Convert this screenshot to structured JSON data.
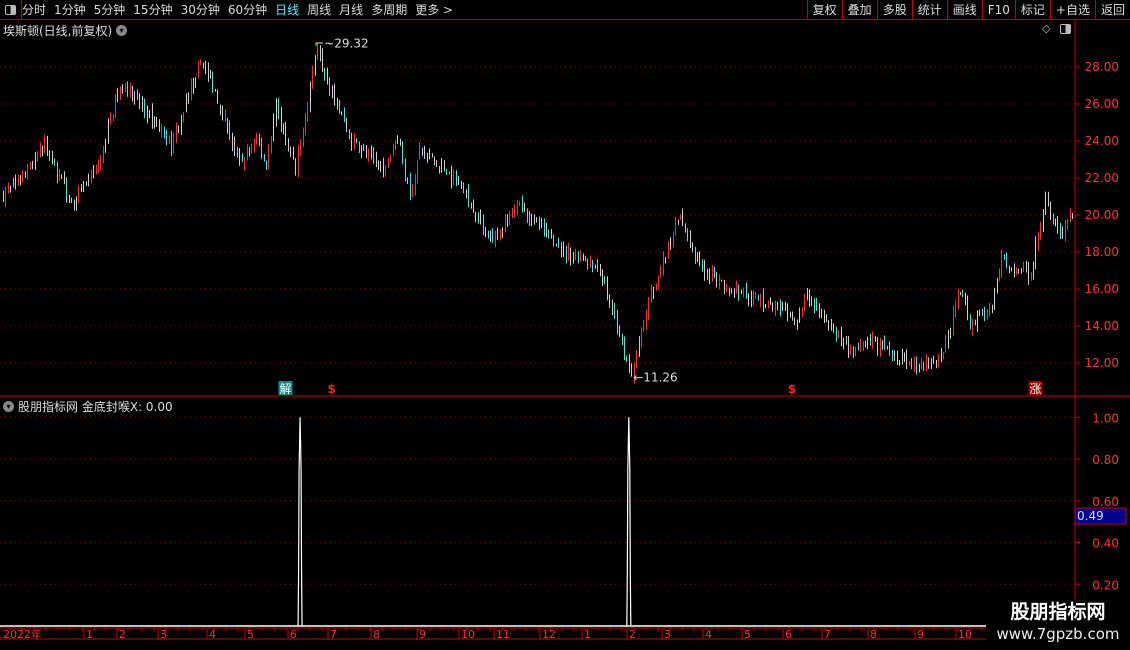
{
  "toolbar": {
    "periods": [
      "分时",
      "1分钟",
      "5分钟",
      "15分钟",
      "30分钟",
      "60分钟",
      "日线",
      "周线",
      "月线",
      "多周期",
      "更多 >"
    ],
    "active": "日线",
    "tools": [
      "复权",
      "叠加",
      "多股",
      "统计",
      "画线",
      "F10",
      "标记",
      "+自选",
      "返回"
    ]
  },
  "stock_title": "埃斯顿(日线,前复权)",
  "indicator_title": "股朋指标网",
  "indicator_value": "金底封喉X: 0.00",
  "current_value_badge": "0.49",
  "watermark": {
    "line1": "股朋指标网",
    "line2": "www.7gpzb.com"
  },
  "colors": {
    "up": "#ff3030",
    "down": "#40e8f0",
    "neutral": "#d0d0d0",
    "axis": "#cc0000",
    "badge": "#000090"
  },
  "markers": [
    {
      "text": "解",
      "bar": 116
    },
    {
      "text": "$",
      "bar": 135
    },
    {
      "text": "$",
      "bar": 324
    },
    {
      "text": "涨",
      "bar": 424
    }
  ],
  "chart_data": [
    {
      "type": "candlestick",
      "price_ticks": [
        "28.00",
        "26.00",
        "24.00",
        "22.00",
        "20.00",
        "18.00",
        "16.00",
        "14.00",
        "12.00"
      ],
      "ylim": [
        11,
        29.5
      ],
      "high_label": "29.32",
      "low_label": "11.26",
      "bars": 440,
      "trend_points": [
        [
          0,
          21.08
        ],
        [
          9,
          22.16
        ],
        [
          17,
          23.78
        ],
        [
          28,
          20.54
        ],
        [
          40,
          22.97
        ],
        [
          46,
          26.22
        ],
        [
          50,
          27.03
        ],
        [
          69,
          23.78
        ],
        [
          81,
          28.38
        ],
        [
          87,
          26.76
        ],
        [
          97,
          22.7
        ],
        [
          104,
          24.05
        ],
        [
          108,
          22.7
        ],
        [
          112,
          25.95
        ],
        [
          120,
          22.43
        ],
        [
          129,
          29.2
        ],
        [
          134,
          27.03
        ],
        [
          143,
          24.05
        ],
        [
          157,
          22.43
        ],
        [
          162,
          24.32
        ],
        [
          167,
          21.08
        ],
        [
          171,
          23.51
        ],
        [
          188,
          21.62
        ],
        [
          200,
          18.65
        ],
        [
          212,
          20.54
        ],
        [
          229,
          18.11
        ],
        [
          245,
          17.03
        ],
        [
          258,
          11.35
        ],
        [
          266,
          15.68
        ],
        [
          278,
          20.0
        ],
        [
          284,
          17.57
        ],
        [
          295,
          16.22
        ],
        [
          311,
          15.41
        ],
        [
          326,
          14.32
        ],
        [
          330,
          15.68
        ],
        [
          348,
          12.43
        ],
        [
          356,
          13.24
        ],
        [
          373,
          11.89
        ],
        [
          385,
          12.16
        ],
        [
          393,
          15.95
        ],
        [
          397,
          14.05
        ],
        [
          406,
          15.14
        ],
        [
          410,
          17.57
        ],
        [
          418,
          17.03
        ],
        [
          422,
          16.76
        ],
        [
          428,
          21.08
        ],
        [
          434,
          18.92
        ],
        [
          439,
          20.0
        ]
      ],
      "date_labels": [
        "2022年",
        "1",
        "2",
        "3",
        "4",
        "5",
        "6",
        "7",
        "8",
        "9",
        "10",
        "11",
        "12",
        "1",
        "2",
        "3",
        "4",
        "5",
        "6",
        "7",
        "8",
        "9",
        "10"
      ]
    },
    {
      "type": "line",
      "name": "金底封喉X",
      "ticks": [
        "1.00",
        "0.80",
        "0.60",
        "0.40",
        "0.20"
      ],
      "ylim": [
        0,
        1.05
      ],
      "spikes": [
        {
          "bar": 122,
          "value": 1.0
        },
        {
          "bar": 257,
          "value": 1.0
        }
      ],
      "baseline": 0
    }
  ]
}
